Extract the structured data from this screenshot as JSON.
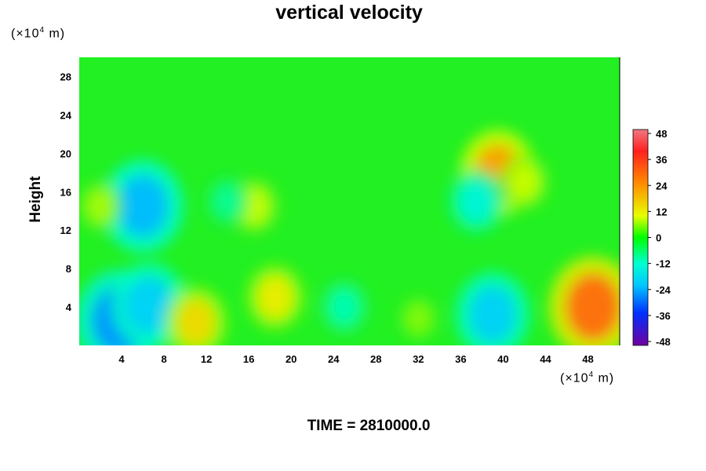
{
  "chart_data": {
    "type": "heatmap",
    "title": "vertical velocity",
    "ylabel": "Height",
    "x_unit_prefix": "(×10",
    "x_unit_exp": "4",
    "x_unit_suffix": " m)",
    "y_unit_prefix": "(×10",
    "y_unit_exp": "4",
    "y_unit_suffix": " m)",
    "xlim": [
      0,
      51
    ],
    "ylim": [
      0,
      30
    ],
    "xticks": [
      4,
      8,
      12,
      16,
      20,
      24,
      28,
      32,
      36,
      40,
      44,
      48
    ],
    "yticks": [
      4,
      8,
      12,
      16,
      20,
      24,
      28
    ],
    "colorbar": {
      "ticks": [
        48,
        36,
        24,
        12,
        0,
        -12,
        -24,
        -36,
        -48
      ],
      "range": [
        -48,
        48
      ]
    },
    "features": [
      {
        "x": 3.8,
        "y": 2.6,
        "value": -28
      },
      {
        "x": 6.6,
        "y": 4.2,
        "value": -22
      },
      {
        "x": 11,
        "y": 2.4,
        "value": 16
      },
      {
        "x": 18.5,
        "y": 5,
        "value": 14
      },
      {
        "x": 25,
        "y": 4,
        "value": -10
      },
      {
        "x": 32,
        "y": 2.8,
        "value": 6
      },
      {
        "x": 39,
        "y": 3.2,
        "value": -22
      },
      {
        "x": 48.5,
        "y": 4,
        "value": 28
      },
      {
        "x": 6,
        "y": 14.5,
        "value": -25
      },
      {
        "x": 39.5,
        "y": 18,
        "value": 22
      },
      {
        "x": 2,
        "y": 14.5,
        "value": 8
      },
      {
        "x": 16.5,
        "y": 14.5,
        "value": 10
      },
      {
        "x": 37.5,
        "y": 15,
        "value": -14
      },
      {
        "x": 14,
        "y": 15,
        "value": -8
      },
      {
        "x": 42,
        "y": 17,
        "value": 10
      }
    ]
  },
  "footer": {
    "time_label": "TIME = 2810000.0"
  }
}
